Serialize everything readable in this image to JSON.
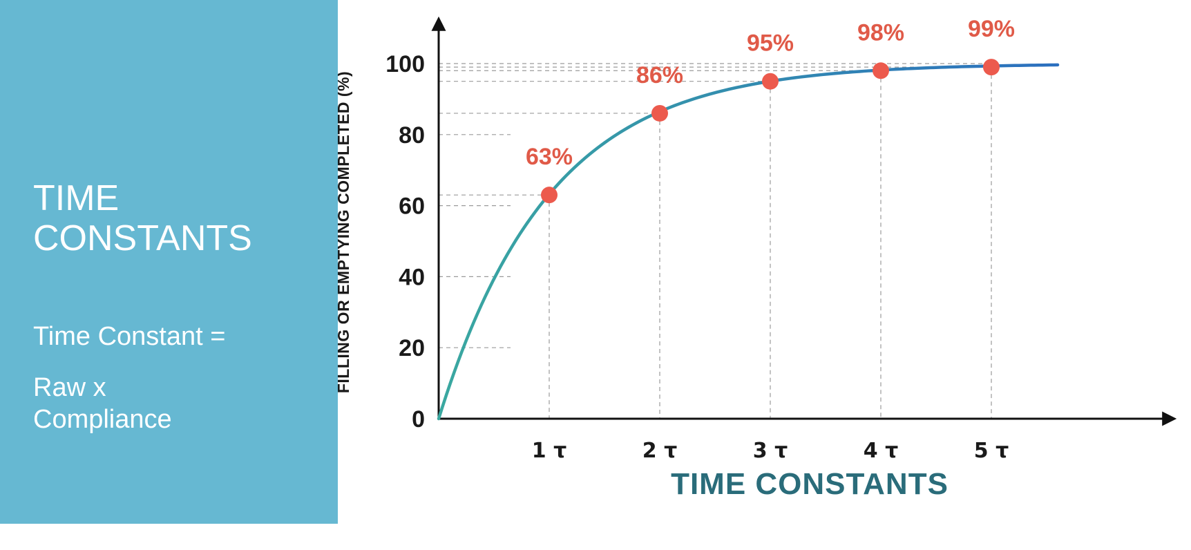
{
  "panel": {
    "title": "TIME CONSTANTS",
    "formula_line1": "Time Constant =",
    "formula_line2": "Raw x Compliance",
    "background_color": "#66b8d2"
  },
  "chart_data": {
    "type": "line",
    "title": "",
    "xlabel": "TIME CONSTANTS",
    "ylabel": "FILLING OR EMPTYING COMPLETED (%)",
    "xlim": [
      0,
      5.6
    ],
    "ylim": [
      0,
      100
    ],
    "y_ticks": [
      0,
      20,
      40,
      60,
      80,
      100
    ],
    "x_ticks": [
      {
        "value": 1,
        "label": "1 τ"
      },
      {
        "value": 2,
        "label": "2 τ"
      },
      {
        "value": 3,
        "label": "3 τ"
      },
      {
        "value": 4,
        "label": "4 τ"
      },
      {
        "value": 5,
        "label": "5 τ"
      }
    ],
    "curve": {
      "formula": "100 * (1 - exp(-x))",
      "x_start": 0,
      "x_end": 5.6
    },
    "points": [
      {
        "x": 1,
        "y": 63,
        "label": "63%"
      },
      {
        "x": 2,
        "y": 86,
        "label": "86%"
      },
      {
        "x": 3,
        "y": 95,
        "label": "95%"
      },
      {
        "x": 4,
        "y": 98,
        "label": "98%"
      },
      {
        "x": 5,
        "y": 99,
        "label": "99%"
      }
    ],
    "grid": "dashed guides",
    "colors": {
      "curve_start": "#3aa8a0",
      "curve_end": "#2b6fbf",
      "points": "#ec5a4d",
      "data_labels": "#e05a48",
      "axis": "#111111",
      "grid": "#9a9a9a",
      "xlabel": "#2a6c7a"
    }
  }
}
